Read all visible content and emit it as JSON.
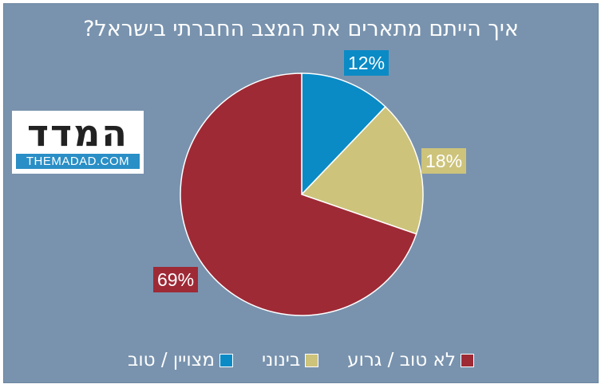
{
  "chart_data": {
    "type": "pie",
    "title": "איך הייתם מתארים את המצב החברתי בישראל?",
    "slices": [
      {
        "name": "מצויין / טוב",
        "value": 12,
        "label": "12%",
        "color": "#0a8bc6"
      },
      {
        "name": "בינוני",
        "value": 18,
        "label": "18%",
        "color": "#cdc37b"
      },
      {
        "name": "לא טוב / גרוע",
        "value": 69,
        "label": "69%",
        "color": "#9e2a36"
      }
    ],
    "legend_placement": "bottom",
    "background_color": "#7993ae"
  },
  "logo": {
    "hebrew_text": "המדד",
    "site_text": "THEMADAD.COM"
  }
}
